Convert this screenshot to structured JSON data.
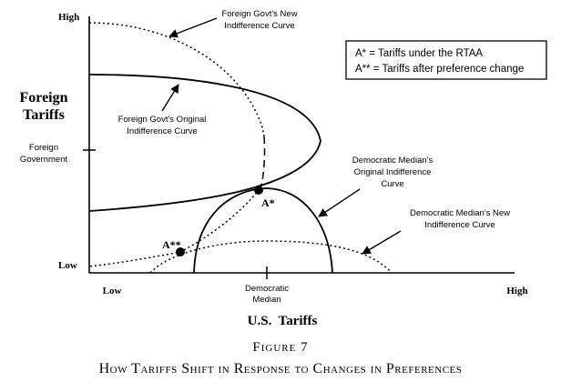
{
  "y_axis": {
    "title_line1": "Foreign",
    "title_line2": "Tariffs",
    "tick_high": "High",
    "tick_low": "Low",
    "tick_mid_line1": "Foreign",
    "tick_mid_line2": "Government"
  },
  "x_axis": {
    "title": "U.S.  Tariffs",
    "tick_low": "Low",
    "tick_high": "High",
    "tick_mid_line1": "Democratic",
    "tick_mid_line2": "Median"
  },
  "legend": {
    "line1": "A*  = Tariffs under the RTAA",
    "line2": "A** = Tariffs after preference change"
  },
  "annotations": {
    "foreign_new_line1": "Foreign Govt's New",
    "foreign_new_line2": "Indifference Curve",
    "foreign_orig_line1": "Foreign Govt's Original",
    "foreign_orig_line2": "Indifference Curve",
    "dem_orig_line1": "Democratic Median's",
    "dem_orig_line2": "Original Indifference",
    "dem_orig_line3": "Curve",
    "dem_new_line1": "Democratic Median's New",
    "dem_new_line2": "Indifference Curve"
  },
  "points": {
    "a_star": "A*",
    "a_double_star": "A**"
  },
  "caption": {
    "figure_number": "Figure 7",
    "title": "How Tariffs Shift in Response to Changes in Preferences"
  }
}
